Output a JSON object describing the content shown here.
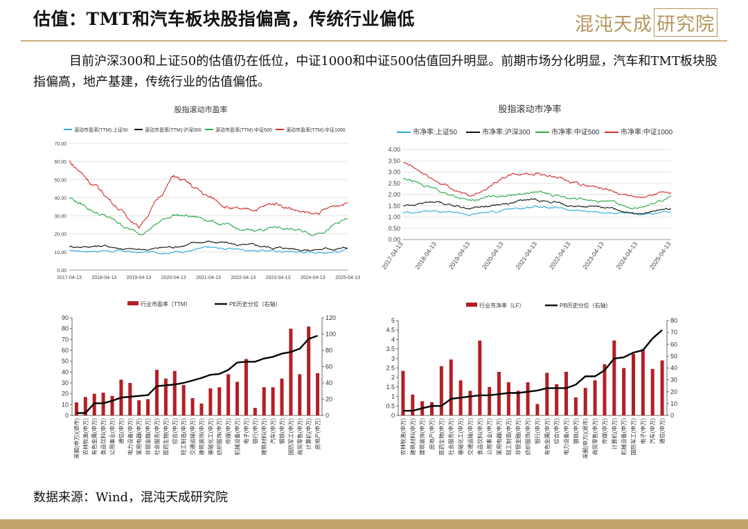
{
  "header": {
    "title": "估值：TMT和汽车板块股指偏高，传统行业偏低",
    "logo_text": "混沌天成",
    "logo_box": "研究院"
  },
  "paragraph": "目前沪深300和上证50的估值仍在低位，中证1000和中证500估值回升明显。前期市场分化明显，汽车和TMT板块股指偏高，地产基建，传统行业的估值偏低。",
  "source": "数据来源：Wind，混沌天成研究院",
  "colors": {
    "cyan": "#29a8df",
    "black": "#111111",
    "green": "#2ca84a",
    "red": "#d22a2a",
    "bar": "#b41f24",
    "gold": "#c4a46c"
  },
  "chart_data": [
    {
      "type": "line",
      "title": "股指滚动市盈率",
      "x": [
        "2017-04-13",
        "2018-04-13",
        "2019-04-13",
        "2020-04-13",
        "2021-04-13",
        "2022-04-13",
        "2023-04-13",
        "2024-04-13",
        "2025-04-13"
      ],
      "ylim": [
        0,
        70
      ],
      "yticks": [
        "0.00",
        "10.00",
        "20.00",
        "30.00",
        "40.00",
        "50.00",
        "60.00",
        "70.00"
      ],
      "series": [
        {
          "name": "滚动市盈率(TTM):上证50",
          "color": "cyan",
          "values": [
            10.5,
            11.0,
            9.5,
            10.2,
            12.0,
            11.5,
            10.5,
            10.0,
            11.0
          ]
        },
        {
          "name": "滚动市盈率(TTM):沪深300",
          "color": "black",
          "values": [
            13.0,
            13.5,
            11.0,
            13.0,
            16.0,
            13.5,
            12.5,
            11.5,
            12.5
          ]
        },
        {
          "name": "滚动市盈率(TTM):中证500",
          "color": "green",
          "values": [
            40.0,
            30.0,
            20.0,
            31.0,
            28.0,
            21.0,
            24.0,
            20.0,
            28.0
          ]
        },
        {
          "name": "滚动市盈率(TTM):中证1000",
          "color": "red",
          "values": [
            60.0,
            42.0,
            24.0,
            52.0,
            40.0,
            32.0,
            37.0,
            30.0,
            38.0
          ]
        }
      ]
    },
    {
      "type": "line",
      "title": "股指滚动市净率",
      "x": [
        "2017-04-13",
        "2018-04-13",
        "2019-04-13",
        "2020-04-13",
        "2021-04-13",
        "2022-04-13",
        "2023-04-13",
        "2024-04-13",
        "2025-04-13"
      ],
      "ylim": [
        0,
        4
      ],
      "yticks": [
        "0.00",
        "0.50",
        "1.00",
        "1.50",
        "2.00",
        "2.50",
        "3.00",
        "3.50",
        "4.00"
      ],
      "series": [
        {
          "name": "市净率:上证50",
          "color": "cyan",
          "values": [
            1.2,
            1.3,
            1.1,
            1.3,
            1.5,
            1.3,
            1.2,
            1.1,
            1.2
          ]
        },
        {
          "name": "市净率:沪深300",
          "color": "black",
          "values": [
            1.5,
            1.7,
            1.4,
            1.6,
            1.8,
            1.5,
            1.4,
            1.2,
            1.35
          ]
        },
        {
          "name": "市净率:中证500",
          "color": "green",
          "values": [
            2.7,
            2.2,
            1.7,
            2.0,
            2.1,
            1.8,
            1.7,
            1.4,
            1.85
          ]
        },
        {
          "name": "市净率:中证1000",
          "color": "red",
          "values": [
            3.4,
            2.6,
            1.9,
            2.8,
            3.0,
            2.5,
            2.3,
            1.8,
            2.1
          ]
        }
      ]
    },
    {
      "type": "bar",
      "series": [
        {
          "name": "行业市盈率（TTM）",
          "color": "bar"
        },
        {
          "name": "PE历史分位（右轴）",
          "color": "black"
        }
      ],
      "categories": [
        "采掘(申万)(退市)",
        "农林牧渔(申万)",
        "有色金属(申万)",
        "食品饮料(申万)",
        "公用事业(申万)",
        "通信(申万)",
        "电力设备(申万)",
        "家用电器(申万)",
        "非银金融(申万)",
        "社会服务(申万)",
        "医药生物(申万)",
        "综合(申万)",
        "轻工制造(申万)",
        "交通运输(申万)",
        "建筑装饰(申万)",
        "基础化工(申万)",
        "纺织服饰(申万)",
        "传媒(申万)",
        "机械设备(申万)",
        "电子(申万)",
        "银行(申万)",
        "建筑材料(申万)",
        "汽车(申万)",
        "钢铁(申万)",
        "国防军工(申万)",
        "商贸零售(申万)",
        "计算机(申万)",
        "房地产(申万)"
      ],
      "values": [
        12,
        17,
        20,
        21,
        18,
        33,
        30,
        14,
        15,
        42,
        34,
        41,
        28,
        16,
        11,
        25,
        26,
        38,
        31,
        52,
        7,
        26,
        26,
        34,
        80,
        38,
        82,
        39
      ],
      "line_values": [
        3,
        3,
        15,
        15,
        18,
        22,
        23,
        24,
        25,
        36,
        37,
        38,
        40,
        43,
        46,
        50,
        51,
        56,
        65,
        66,
        66,
        70,
        72,
        76,
        78,
        82,
        94,
        98
      ],
      "ylim": [
        0,
        90
      ],
      "yticks": [
        "0",
        "10",
        "20",
        "30",
        "40",
        "50",
        "60",
        "70",
        "80",
        "90"
      ],
      "y2lim": [
        0,
        120
      ],
      "y2ticks": [
        "0",
        "20",
        "40",
        "60",
        "80",
        "100",
        "120"
      ]
    },
    {
      "type": "bar",
      "series": [
        {
          "name": "行业市净率（LF）",
          "color": "bar"
        },
        {
          "name": "PB历史分位（右轴）",
          "color": "black"
        }
      ],
      "categories": [
        "农林牧渔(申万)",
        "建筑材料(申万)",
        "建筑装饰(申万)",
        "房地产(申万)",
        "医药生物(申万)",
        "社会服务(申万)",
        "基础化工(申万)",
        "交通运输(申万)",
        "食品饮料(申万)",
        "公用事业(申万)",
        "家用电器(申万)",
        "轻工制造(申万)",
        "非银金融(申万)",
        "纺织服饰(申万)",
        "银行(申万)",
        "有色金属(申万)",
        "综合(申万)",
        "电力设备(申万)",
        "钢铁(申万)",
        "采掘(申万)(退市)",
        "商贸零售(申万)",
        "传媒(申万)",
        "计算机(申万)",
        "机械设备(申万)",
        "国防军工(申万)",
        "电子(申万)",
        "汽车(申万)",
        "通信(申万)"
      ],
      "values": [
        2.35,
        1.1,
        0.75,
        0.7,
        2.6,
        2.95,
        1.85,
        1.3,
        3.95,
        1.5,
        2.3,
        1.75,
        1.3,
        1.75,
        0.6,
        2.25,
        1.65,
        2.3,
        0.95,
        1.45,
        1.85,
        2.7,
        3.95,
        2.5,
        3.25,
        3.5,
        2.45,
        2.9
      ],
      "line_values": [
        4,
        4,
        6,
        8,
        8,
        14,
        15,
        16,
        17,
        17,
        18,
        19,
        19,
        20,
        21,
        23,
        23,
        23,
        26,
        33,
        33,
        38,
        48,
        49,
        53,
        55,
        65,
        72
      ],
      "ylim": [
        0,
        5
      ],
      "yticks": [
        "0",
        "0.5",
        "1",
        "1.5",
        "2",
        "2.5",
        "3",
        "3.5",
        "4",
        "4.5",
        "5"
      ],
      "y2lim": [
        0,
        80
      ],
      "y2ticks": [
        "0",
        "10",
        "20",
        "30",
        "40",
        "50",
        "60",
        "70",
        "80"
      ]
    }
  ]
}
